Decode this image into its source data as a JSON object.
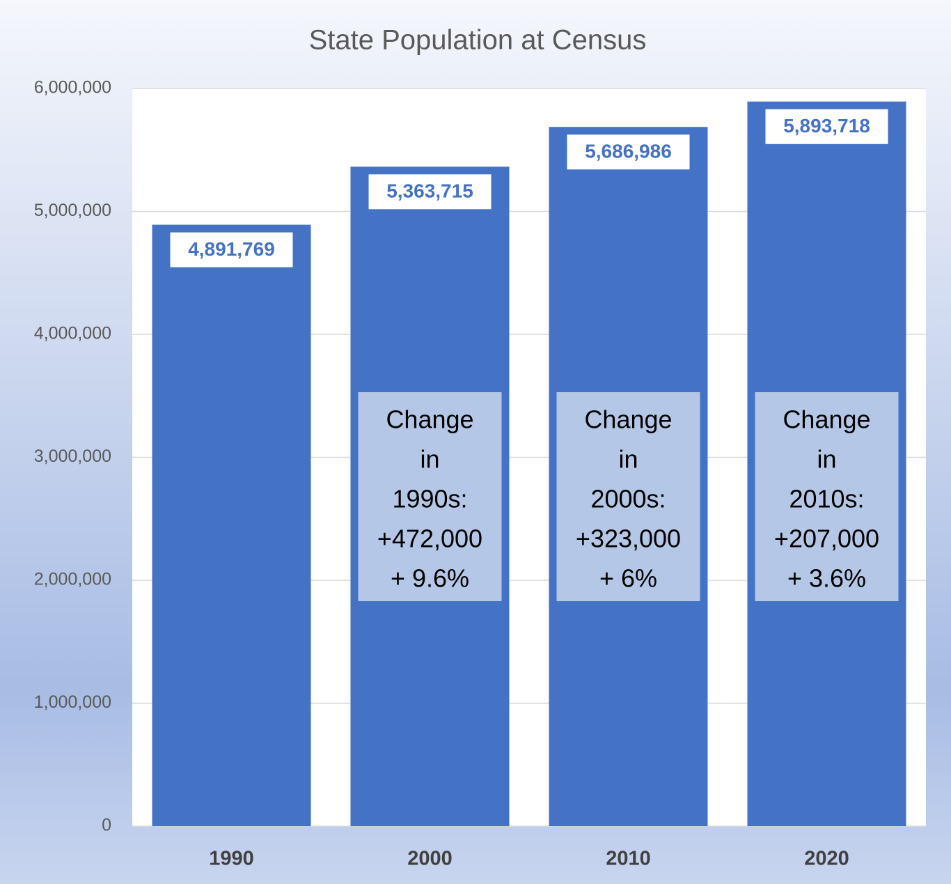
{
  "chart_data": {
    "type": "bar",
    "title": "State Population at Census",
    "categories": [
      "1990",
      "2000",
      "2010",
      "2020"
    ],
    "values": [
      4891769,
      5363715,
      5686986,
      5893718
    ],
    "value_labels": [
      "4,891,769",
      "5,363,715",
      "5,686,986",
      "5,893,718"
    ],
    "color": "#4472c4",
    "ylim": [
      0,
      6000000
    ],
    "yticks": [
      0,
      {
        "value": 1000000,
        "label": "1,000,000"
      },
      {
        "value": 2000000,
        "label": "2,000,000"
      },
      {
        "value": 3000000,
        "label": "3,000,000"
      },
      {
        "value": 4000000,
        "label": "4,000,000"
      },
      {
        "value": 5000000,
        "label": "5,000,000"
      },
      {
        "value": 6000000,
        "label": "6,000,000"
      }
    ],
    "grid": true,
    "annotations": [
      {
        "category": "2000",
        "lines": [
          "Change",
          "in",
          "1990s:",
          "+472,000",
          "+ 9.6%"
        ]
      },
      {
        "category": "2010",
        "lines": [
          "Change",
          "in",
          "2000s:",
          "+323,000",
          "+ 6%"
        ]
      },
      {
        "category": "2020",
        "lines": [
          "Change",
          "in",
          "2010s:",
          "+207,000",
          "+ 3.6%"
        ]
      }
    ]
  }
}
